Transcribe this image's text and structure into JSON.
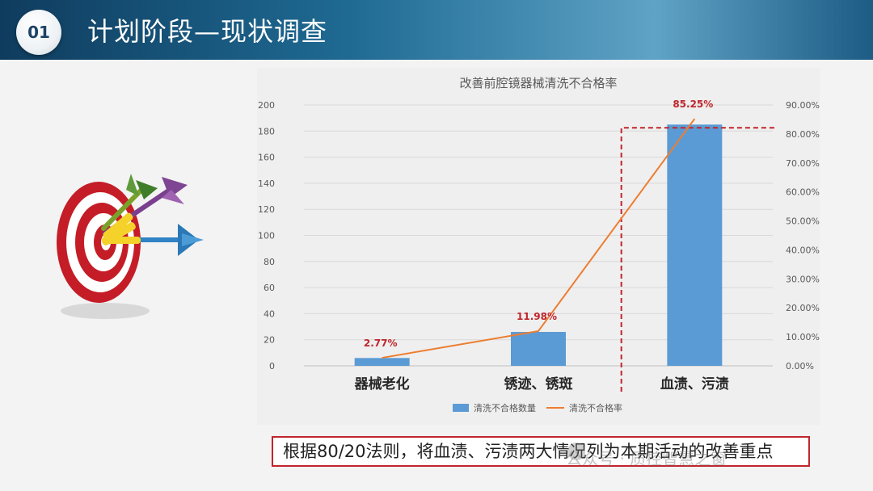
{
  "header": {
    "badge": "01",
    "title": "计划阶段—现状调查"
  },
  "conclusion": "根据80/20法则，将血渍、污渍两大情况列为本期活动的改善重点",
  "watermark": "公众号 · 质控智慧之窗",
  "colors": {
    "bar": "#5b9bd5",
    "line": "#ed7d31",
    "highlight": "#c0252b",
    "header": "#1f6a93"
  },
  "icons": {
    "decoration": "dartboard-target-icon"
  },
  "chart_data": {
    "type": "bar",
    "title": "改善前腔镜器械清洗不合格率",
    "categories": [
      "器械老化",
      "锈迹、锈斑",
      "血渍、污渍"
    ],
    "series": [
      {
        "name": "清洗不合格数量",
        "type": "bar",
        "values": [
          6,
          26,
          185
        ],
        "axis": "left"
      },
      {
        "name": "清洗不合格率",
        "type": "line",
        "values": [
          2.77,
          11.98,
          85.25
        ],
        "axis": "right"
      }
    ],
    "data_labels": [
      "2.77%",
      "11.98%",
      "85.25%"
    ],
    "left_axis": {
      "ylim": [
        0,
        200
      ],
      "ticks": [
        "0",
        "20",
        "40",
        "60",
        "80",
        "100",
        "120",
        "140",
        "160",
        "180",
        "200"
      ]
    },
    "right_axis": {
      "ylim": [
        0,
        90
      ],
      "ticks": [
        "0.00%",
        "10.00%",
        "20.00%",
        "30.00%",
        "40.00%",
        "50.00%",
        "60.00%",
        "70.00%",
        "80.00%",
        "90.00%"
      ]
    },
    "legend": {
      "placement": "bottom"
    },
    "grid": true,
    "highlight": "血渍、污渍"
  }
}
